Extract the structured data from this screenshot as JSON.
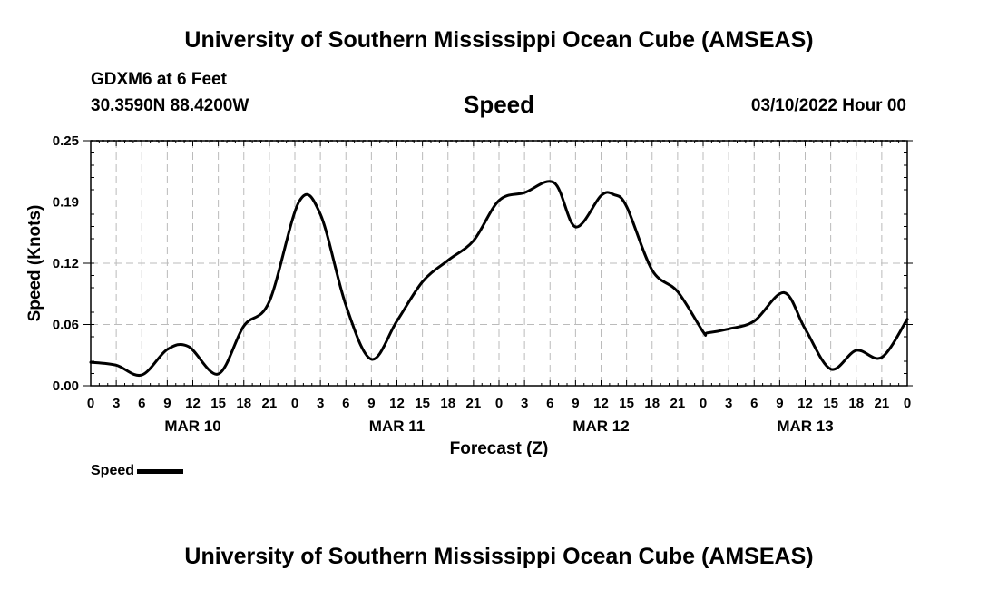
{
  "header": {
    "title": "University of Southern Mississippi Ocean Cube (AMSEAS)",
    "station": "GDXM6 at 6 Feet",
    "coords": "30.3590N  88.4200W",
    "plot_title": "Speed",
    "run_date": "03/10/2022 Hour 00"
  },
  "footer": {
    "title": "University of Southern Mississippi Ocean Cube (AMSEAS)"
  },
  "legend": {
    "label": "Speed"
  },
  "colors": {
    "line": "#000000",
    "grid": "#bbbbbb",
    "background": "#ffffff"
  },
  "chart_data": {
    "type": "line",
    "title": "Speed",
    "xlabel": "Forecast (Z)",
    "ylabel": "Speed (Knots)",
    "ylim": [
      0,
      0.25
    ],
    "y_ticks": [
      "0.00",
      "0.06",
      "0.12",
      "0.19",
      "0.25"
    ],
    "y_tick_values": [
      0,
      0.0625,
      0.125,
      0.1875,
      0.25
    ],
    "xlim_hours": [
      0,
      96
    ],
    "x_tick_hours": [
      0,
      3,
      6,
      9,
      12,
      15,
      18,
      21,
      24,
      27,
      30,
      33,
      36,
      39,
      42,
      45,
      48,
      51,
      54,
      57,
      60,
      63,
      66,
      69,
      72,
      75,
      78,
      81,
      84,
      87,
      90,
      93,
      96
    ],
    "x_tick_labels": [
      "0",
      "3",
      "6",
      "9",
      "12",
      "15",
      "18",
      "21",
      "0",
      "3",
      "6",
      "9",
      "12",
      "15",
      "18",
      "21",
      "0",
      "3",
      "6",
      "9",
      "12",
      "15",
      "18",
      "21",
      "0",
      "3",
      "6",
      "9",
      "12",
      "15",
      "18",
      "21",
      "0"
    ],
    "day_labels": [
      {
        "hour": 12,
        "label": "MAR 10"
      },
      {
        "hour": 36,
        "label": "MAR 11"
      },
      {
        "hour": 60,
        "label": "MAR 12"
      },
      {
        "hour": 84,
        "label": "MAR 13"
      }
    ],
    "grid": true,
    "series": [
      {
        "name": "Speed",
        "x": [
          0,
          3,
          6,
          9,
          11.5,
          15,
          18,
          21,
          24.5,
          27,
          30,
          33,
          36,
          39,
          42,
          45,
          48,
          51,
          54.5,
          57,
          60,
          61.5,
          63,
          66,
          69,
          72,
          72.5,
          75,
          78,
          81.5,
          84,
          87,
          90,
          93,
          96
        ],
        "values": [
          0.024,
          0.021,
          0.011,
          0.037,
          0.04,
          0.012,
          0.061,
          0.086,
          0.188,
          0.175,
          0.082,
          0.027,
          0.066,
          0.106,
          0.128,
          0.148,
          0.189,
          0.197,
          0.207,
          0.162,
          0.194,
          0.195,
          0.183,
          0.118,
          0.096,
          0.055,
          0.054,
          0.058,
          0.066,
          0.095,
          0.058,
          0.017,
          0.036,
          0.029,
          0.068
        ]
      }
    ]
  }
}
